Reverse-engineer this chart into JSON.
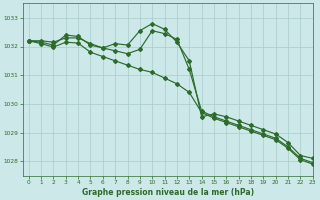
{
  "title": "Graphe pression niveau de la mer (hPa)",
  "bg_color": "#cce8e8",
  "grid_color": "#aacccc",
  "line_color": "#2d6b2d",
  "xlim": [
    -0.5,
    23
  ],
  "ylim": [
    1027.5,
    1033.5
  ],
  "yticks": [
    1028,
    1029,
    1030,
    1031,
    1032,
    1033
  ],
  "xticks": [
    0,
    1,
    2,
    3,
    4,
    5,
    6,
    7,
    8,
    9,
    10,
    11,
    12,
    13,
    14,
    15,
    16,
    17,
    18,
    19,
    20,
    21,
    22,
    23
  ],
  "line1_x": [
    0,
    1,
    2,
    3,
    4,
    5,
    6,
    7,
    8,
    9,
    10,
    11,
    12,
    13,
    14,
    15,
    16,
    17,
    18,
    19,
    20,
    21,
    22,
    23
  ],
  "line1_y": [
    1032.2,
    1032.15,
    1032.05,
    1032.4,
    1032.35,
    1032.05,
    1031.95,
    1032.1,
    1032.05,
    1032.55,
    1032.8,
    1032.6,
    1032.15,
    1031.5,
    1029.55,
    1029.65,
    1029.55,
    1029.4,
    1029.25,
    1029.1,
    1028.95,
    1028.65,
    1028.2,
    1028.1
  ],
  "line2_x": [
    0,
    1,
    2,
    3,
    4,
    5,
    6,
    7,
    8,
    9,
    10,
    11,
    12,
    13,
    14,
    15,
    16,
    17,
    18,
    19,
    20,
    21,
    22,
    23
  ],
  "line2_y": [
    1032.2,
    1032.2,
    1032.15,
    1032.3,
    1032.3,
    1032.1,
    1031.95,
    1031.85,
    1031.75,
    1031.9,
    1032.55,
    1032.45,
    1032.25,
    1031.2,
    1029.75,
    1029.55,
    1029.4,
    1029.25,
    1029.1,
    1028.95,
    1028.8,
    1028.5,
    1028.1,
    1027.95
  ],
  "line3_x": [
    0,
    1,
    2,
    3,
    4,
    5,
    6,
    7,
    8,
    9,
    10,
    11,
    12,
    13,
    14,
    15,
    16,
    17,
    18,
    19,
    20,
    21,
    22,
    23
  ],
  "line3_y": [
    1032.2,
    1032.1,
    1031.98,
    1032.15,
    1032.12,
    1031.8,
    1031.65,
    1031.5,
    1031.35,
    1031.2,
    1031.1,
    1030.9,
    1030.7,
    1030.4,
    1029.7,
    1029.5,
    1029.35,
    1029.2,
    1029.05,
    1028.9,
    1028.75,
    1028.45,
    1028.05,
    1027.9
  ]
}
